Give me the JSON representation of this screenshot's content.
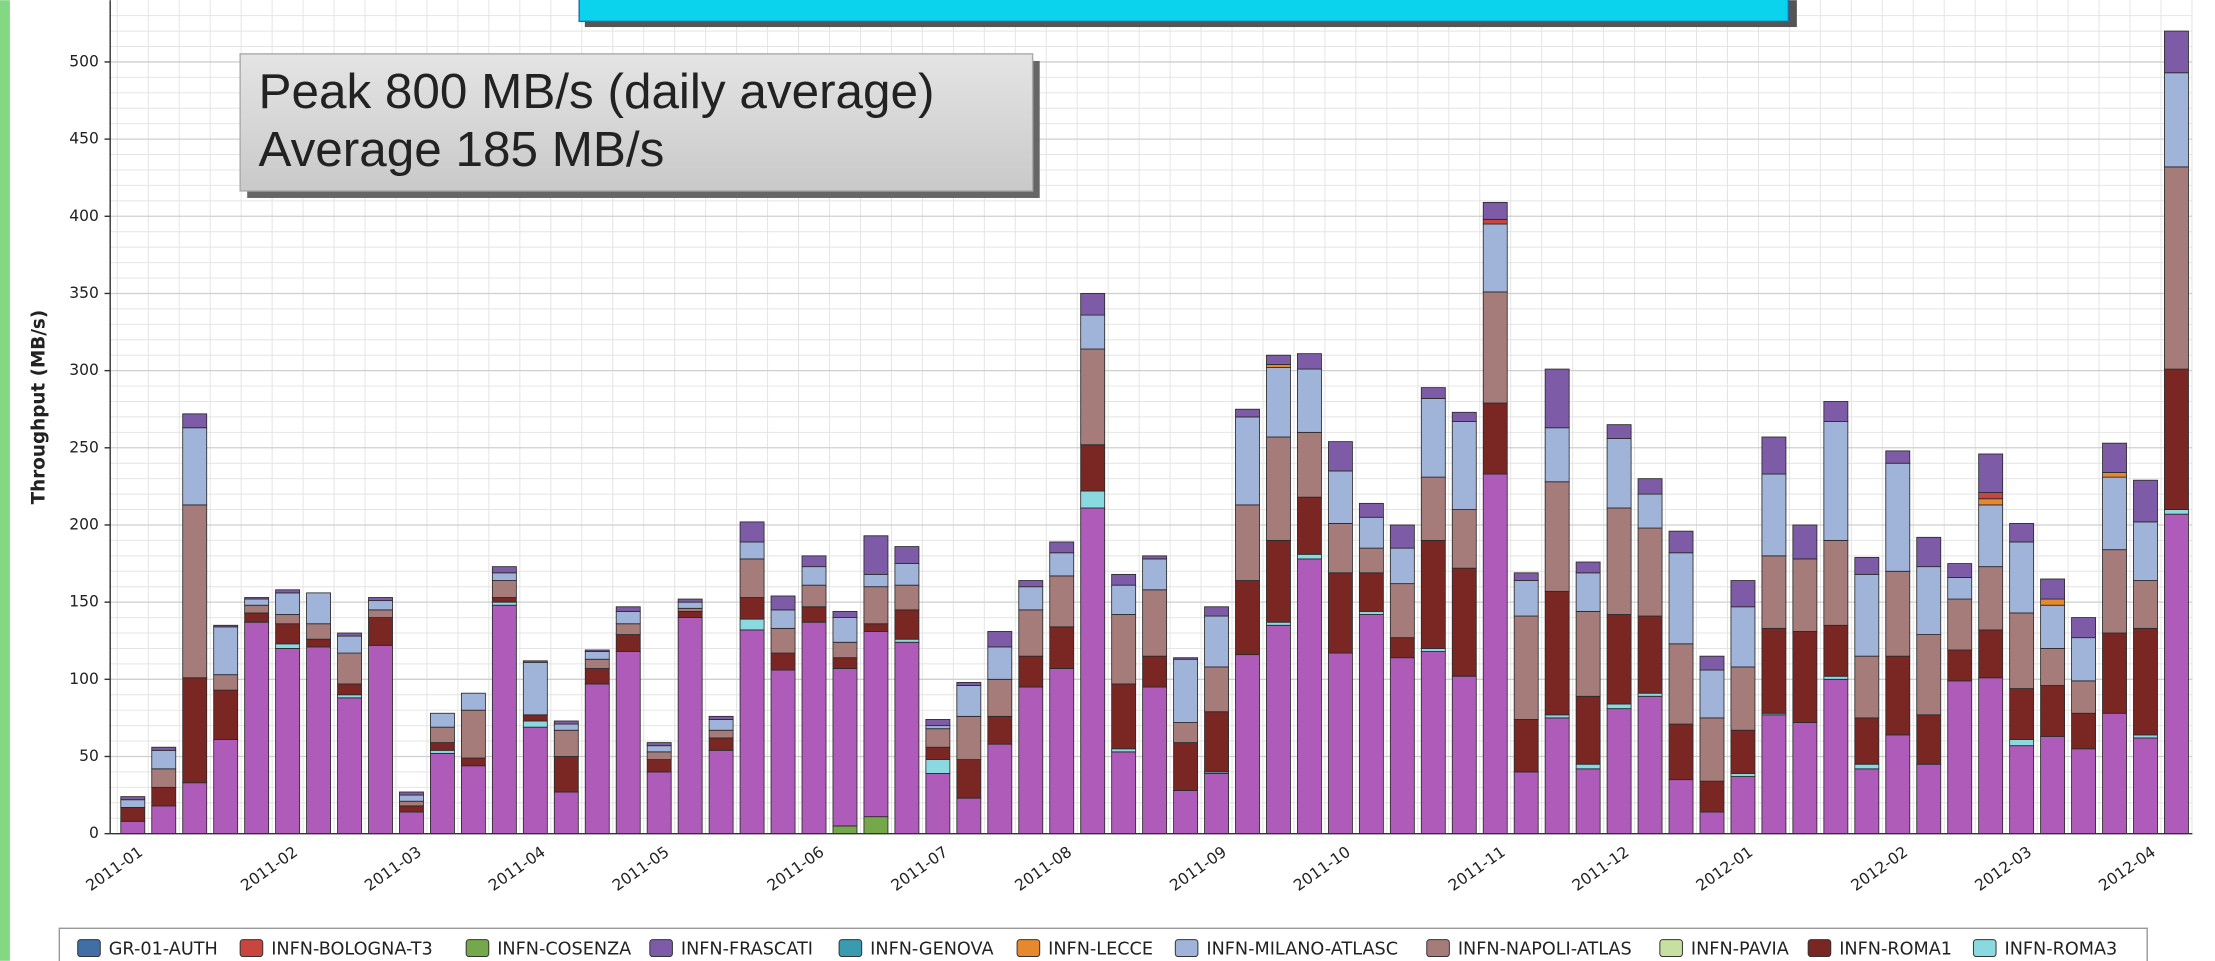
{
  "chart_data": {
    "type": "stacked-bar",
    "annotation": [
      "Peak 800 MB/s (daily average)",
      "Average 185 MB/s"
    ],
    "y_label": "Throughput (MB/s)",
    "categories": [
      "2011-01",
      null,
      null,
      null,
      null,
      "2011-02",
      null,
      null,
      null,
      "2011-03",
      null,
      null,
      null,
      "2011-04",
      null,
      null,
      null,
      "2011-05",
      null,
      null,
      null,
      null,
      "2011-06",
      null,
      null,
      null,
      "2011-07",
      null,
      null,
      null,
      "2011-08",
      null,
      null,
      null,
      null,
      "2011-09",
      null,
      null,
      null,
      "2011-10",
      null,
      null,
      null,
      null,
      "2011-11",
      null,
      null,
      null,
      "2011-12",
      null,
      null,
      null,
      "2012-01",
      null,
      null,
      null,
      null,
      "2012-02",
      null,
      null,
      null,
      "2012-03",
      null,
      null,
      null,
      "2012-04",
      null
    ],
    "ylim": [
      0,
      540
    ],
    "yticks": [
      0,
      50,
      100,
      150,
      200,
      250,
      300,
      350,
      400,
      450,
      500
    ],
    "grid": true,
    "series": [
      {
        "name": "GR-01-AUTH",
        "color": "#3f6fa6",
        "values": [
          0,
          0,
          0,
          0,
          0,
          0,
          0,
          0,
          0,
          0,
          0,
          0,
          0,
          0,
          0,
          0,
          0,
          0,
          0,
          0,
          0,
          0,
          0,
          0,
          0,
          0,
          0,
          0,
          0,
          0,
          0,
          0,
          0,
          0,
          0,
          0,
          0,
          0,
          0,
          0,
          0,
          0,
          0,
          0,
          0,
          0,
          0,
          0,
          0,
          0,
          0,
          0,
          0,
          0,
          0,
          0,
          0,
          0,
          0,
          0,
          0,
          0,
          0,
          0,
          0,
          0,
          0
        ]
      },
      {
        "name": "INFN-BOLOGNA-T3",
        "color": "#c8463f",
        "values": [
          0,
          0,
          0,
          0,
          0,
          0,
          0,
          0,
          0,
          0,
          0,
          0,
          0,
          0,
          0,
          0,
          0,
          0,
          0,
          0,
          0,
          0,
          0,
          0,
          0,
          0,
          0,
          0,
          0,
          0,
          0,
          0,
          0,
          0,
          0,
          0,
          0,
          0,
          0,
          0,
          0,
          0,
          0,
          0,
          3,
          0,
          0,
          0,
          0,
          0,
          0,
          0,
          0,
          0,
          0,
          0,
          0,
          0,
          0,
          0,
          4,
          0,
          0,
          0,
          0,
          0,
          0
        ]
      },
      {
        "name": "INFN-COSENZA",
        "color": "#74a84a",
        "values": [
          0,
          0,
          0,
          0,
          0,
          0,
          0,
          0,
          0,
          0,
          0,
          0,
          0,
          0,
          0,
          0,
          0,
          0,
          0,
          0,
          0,
          0,
          0,
          5,
          11,
          0,
          0,
          0,
          0,
          0,
          0,
          0,
          0,
          0,
          0,
          0,
          0,
          0,
          0,
          0,
          0,
          0,
          0,
          0,
          0,
          0,
          0,
          0,
          0,
          0,
          0,
          0,
          0,
          0,
          0,
          0,
          0,
          0,
          0,
          0,
          0,
          0,
          0,
          0,
          0,
          0,
          0
        ]
      },
      {
        "name": "INFN-FRASCATI",
        "color": "#7d5ba6",
        "values": [
          2,
          2,
          9,
          1,
          1,
          2,
          0,
          2,
          2,
          2,
          0,
          0,
          4,
          1,
          2,
          1,
          3,
          2,
          2,
          2,
          13,
          9,
          7,
          4,
          25,
          11,
          4,
          2,
          10,
          4,
          7,
          14,
          7,
          2,
          1,
          6,
          5,
          6,
          10,
          19,
          9,
          15,
          7,
          6,
          11,
          5,
          38,
          7,
          9,
          10,
          14,
          9,
          17,
          24,
          22,
          13,
          11,
          8,
          19,
          9,
          25,
          12,
          13,
          13,
          19,
          27,
          27
        ]
      },
      {
        "name": "INFN-GENOVA",
        "color": "#3a9ab0",
        "values": [
          0,
          0,
          0,
          0,
          0,
          0,
          0,
          0,
          0,
          0,
          0,
          0,
          0,
          0,
          0,
          0,
          0,
          0,
          0,
          0,
          0,
          0,
          0,
          0,
          0,
          0,
          0,
          0,
          0,
          0,
          0,
          0,
          0,
          0,
          0,
          0,
          0,
          0,
          0,
          0,
          0,
          0,
          0,
          0,
          0,
          0,
          0,
          0,
          0,
          0,
          0,
          0,
          0,
          0,
          0,
          0,
          0,
          0,
          0,
          0,
          0,
          0,
          0,
          0,
          0,
          0,
          0
        ]
      },
      {
        "name": "INFN-LECCE",
        "color": "#e6892e",
        "values": [
          0,
          0,
          0,
          0,
          0,
          0,
          0,
          0,
          0,
          0,
          0,
          0,
          0,
          0,
          0,
          0,
          0,
          0,
          0,
          0,
          0,
          0,
          0,
          0,
          0,
          0,
          0,
          0,
          0,
          0,
          0,
          0,
          0,
          0,
          0,
          0,
          0,
          2,
          0,
          0,
          0,
          0,
          0,
          0,
          0,
          0,
          0,
          0,
          0,
          0,
          0,
          0,
          0,
          0,
          0,
          0,
          0,
          0,
          0,
          0,
          4,
          0,
          4,
          0,
          3,
          0,
          0
        ]
      },
      {
        "name": "INFN-MILANO-ATLASC",
        "color": "#9fb4d8",
        "values": [
          5,
          12,
          50,
          31,
          4,
          14,
          20,
          11,
          6,
          4,
          9,
          11,
          5,
          34,
          4,
          5,
          8,
          4,
          4,
          7,
          11,
          12,
          12,
          16,
          8,
          14,
          2,
          20,
          21,
          15,
          15,
          22,
          19,
          20,
          41,
          33,
          57,
          45,
          41,
          34,
          20,
          23,
          51,
          57,
          44,
          23,
          35,
          25,
          45,
          22,
          59,
          31,
          39,
          53,
          0,
          77,
          53,
          70,
          44,
          14,
          40,
          46,
          28,
          28,
          47,
          38,
          61
        ]
      },
      {
        "name": "INFN-NAPOLI-ATLAS",
        "color": "#a67c7a",
        "values": [
          0,
          12,
          112,
          10,
          5,
          6,
          10,
          20,
          5,
          3,
          10,
          31,
          11,
          0,
          17,
          6,
          7,
          5,
          2,
          5,
          25,
          16,
          14,
          10,
          24,
          16,
          12,
          28,
          24,
          30,
          33,
          62,
          45,
          43,
          13,
          29,
          49,
          67,
          42,
          32,
          16,
          35,
          41,
          38,
          72,
          67,
          71,
          55,
          69,
          57,
          52,
          41,
          41,
          47,
          47,
          55,
          40,
          55,
          52,
          33,
          41,
          49,
          24,
          21,
          54,
          31,
          131
        ]
      },
      {
        "name": "INFN-PAVIA",
        "color": "#c5e0a0",
        "values": [
          0,
          0,
          0,
          0,
          0,
          0,
          0,
          0,
          0,
          0,
          0,
          0,
          0,
          0,
          0,
          0,
          0,
          0,
          0,
          0,
          0,
          0,
          0,
          0,
          0,
          0,
          0,
          0,
          0,
          0,
          0,
          0,
          0,
          0,
          0,
          0,
          0,
          0,
          0,
          0,
          0,
          0,
          0,
          0,
          0,
          0,
          0,
          0,
          0,
          0,
          0,
          0,
          0,
          0,
          0,
          0,
          0,
          0,
          0,
          0,
          0,
          0,
          0,
          0,
          0,
          0,
          0
        ]
      },
      {
        "name": "INFN-ROMA1",
        "color": "#7a2622",
        "values": [
          9,
          12,
          68,
          32,
          6,
          13,
          5,
          7,
          18,
          4,
          5,
          5,
          3,
          4,
          23,
          10,
          11,
          8,
          4,
          8,
          14,
          11,
          10,
          7,
          5,
          19,
          8,
          25,
          18,
          20,
          27,
          30,
          42,
          20,
          31,
          39,
          48,
          53,
          37,
          52,
          25,
          13,
          70,
          70,
          46,
          34,
          80,
          44,
          58,
          50,
          36,
          20,
          28,
          55,
          59,
          33,
          30,
          51,
          32,
          20,
          31,
          33,
          33,
          23,
          52,
          69,
          91
        ]
      },
      {
        "name": "INFN-ROMA3",
        "color": "#8ad8e0",
        "values": [
          0,
          0,
          0,
          0,
          0,
          3,
          0,
          2,
          0,
          0,
          2,
          0,
          2,
          4,
          0,
          0,
          0,
          0,
          0,
          0,
          7,
          0,
          0,
          0,
          0,
          2,
          9,
          0,
          0,
          0,
          0,
          11,
          2,
          0,
          0,
          1,
          0,
          2,
          3,
          0,
          2,
          0,
          2,
          0,
          0,
          0,
          2,
          3,
          3,
          2,
          0,
          0,
          2,
          1,
          0,
          2,
          3,
          0,
          0,
          0,
          0,
          4,
          0,
          0,
          0,
          2,
          3
        ]
      },
      {
        "color": "#ae5bba",
        "values": [
          8,
          18,
          33,
          61,
          137,
          120,
          121,
          88,
          122,
          14,
          52,
          44,
          148,
          69,
          27,
          97,
          118,
          40,
          140,
          54,
          132,
          106,
          137,
          102,
          120,
          124,
          39,
          23,
          58,
          95,
          107,
          211,
          53,
          95,
          28,
          39,
          116,
          135,
          178,
          117,
          142,
          114,
          118,
          102,
          233,
          40,
          75,
          42,
          81,
          89,
          35,
          14,
          37,
          77,
          72,
          100,
          42,
          64,
          45,
          99,
          101,
          57,
          63,
          55,
          78,
          62,
          207
        ]
      }
    ]
  }
}
